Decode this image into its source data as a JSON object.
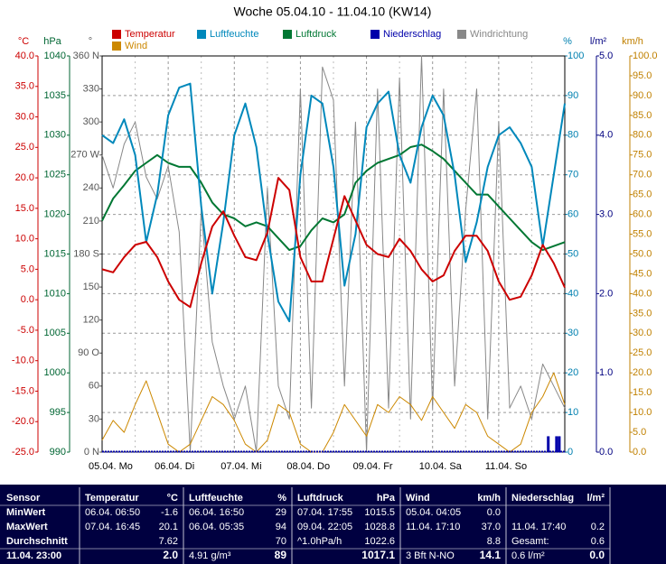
{
  "chart_data": {
    "type": "line",
    "title": "Woche 05.04.10 - 11.04.10 (KW14)",
    "xlim": [
      0,
      168
    ],
    "xticks": [
      {
        "value": 0,
        "label": "05.04. Mo"
      },
      {
        "value": 24,
        "label": "06.04. Di"
      },
      {
        "value": 48,
        "label": "07.04. Mi"
      },
      {
        "value": 72,
        "label": "08.04. Do"
      },
      {
        "value": 96,
        "label": "09.04. Fr"
      },
      {
        "value": 120,
        "label": "10.04. Sa"
      },
      {
        "value": 144,
        "label": "11.04. So"
      }
    ],
    "grid": true,
    "axes": [
      {
        "unit": "°C",
        "color": "#cc0000",
        "lim": [
          -25,
          40
        ],
        "ticks": [
          {
            "value": 40,
            "label": "40.0"
          },
          {
            "value": 35,
            "label": "35.0"
          },
          {
            "value": 30,
            "label": "30.0"
          },
          {
            "value": 25,
            "label": "25.0"
          },
          {
            "value": 20,
            "label": "20.0"
          },
          {
            "value": 15,
            "label": "15.0"
          },
          {
            "value": 10,
            "label": "10.0"
          },
          {
            "value": 5,
            "label": "5.0"
          },
          {
            "value": 0,
            "label": "0.0"
          },
          {
            "value": -5,
            "label": "-5.0"
          },
          {
            "value": -10,
            "label": "-10.0"
          },
          {
            "value": -15,
            "label": "-15.0"
          },
          {
            "value": -20,
            "label": "-20.0"
          },
          {
            "value": -25,
            "label": "-25.0"
          }
        ]
      },
      {
        "unit": "hPa",
        "color": "#006633",
        "lim": [
          990,
          1040
        ],
        "ticks": [
          1040,
          1035,
          1030,
          1025,
          1020,
          1015,
          1010,
          1005,
          1000,
          995,
          990
        ]
      },
      {
        "unit": "°",
        "color": "#555555",
        "lim": [
          0,
          360
        ],
        "ticks": [
          {
            "value": 360,
            "label": "360 N"
          },
          330,
          300,
          {
            "value": 270,
            "label": "270 W"
          },
          240,
          210,
          {
            "value": 180,
            "label": "180 S"
          },
          150,
          120,
          {
            "value": 90,
            "label": "90 O"
          },
          60,
          30,
          {
            "value": 0,
            "label": "0 N"
          }
        ]
      },
      {
        "unit": "%",
        "color": "#0080b0",
        "lim": [
          0,
          100
        ],
        "ticks": [
          100,
          90,
          80,
          70,
          60,
          50,
          40,
          30,
          20,
          10,
          0
        ],
        "grid": true
      },
      {
        "unit": "l/m²",
        "color": "#000080",
        "lim": [
          0,
          5
        ],
        "ticks": [
          {
            "value": 5,
            "label": "5.0"
          },
          {
            "value": 4,
            "label": "4.0"
          },
          {
            "value": 3,
            "label": "3.0"
          },
          {
            "value": 2,
            "label": "2.0"
          },
          {
            "value": 1,
            "label": "1.0"
          },
          {
            "value": 0,
            "label": "0.0"
          }
        ]
      },
      {
        "unit": "km/h",
        "color": "#c08000",
        "lim": [
          0,
          100
        ],
        "ticks": [
          {
            "value": 100,
            "label": "100.0"
          },
          {
            "value": 95,
            "label": "95.0"
          },
          {
            "value": 90,
            "label": "90.0"
          },
          {
            "value": 85,
            "label": "85.0"
          },
          {
            "value": 80,
            "label": "80.0"
          },
          {
            "value": 75,
            "label": "75.0"
          },
          {
            "value": 70,
            "label": "70.0"
          },
          {
            "value": 65,
            "label": "65.0"
          },
          {
            "value": 60,
            "label": "60.0"
          },
          {
            "value": 55,
            "label": "55.0"
          },
          {
            "value": 50,
            "label": "50.0"
          },
          {
            "value": 45,
            "label": "45.0"
          },
          {
            "value": 40,
            "label": "40.0"
          },
          {
            "value": 35,
            "label": "35.0"
          },
          {
            "value": 30,
            "label": "30.0"
          },
          {
            "value": 25,
            "label": "25.0"
          },
          {
            "value": 20,
            "label": "20.0"
          },
          {
            "value": 15,
            "label": "15.0"
          },
          {
            "value": 10,
            "label": "10.0"
          },
          {
            "value": 5,
            "label": "5.0"
          },
          {
            "value": 0,
            "label": "0.0"
          }
        ]
      }
    ],
    "x": [
      0,
      4,
      8,
      12,
      16,
      20,
      24,
      28,
      32,
      36,
      40,
      44,
      48,
      52,
      56,
      60,
      64,
      68,
      72,
      76,
      80,
      84,
      88,
      92,
      96,
      100,
      104,
      108,
      112,
      116,
      120,
      124,
      128,
      132,
      136,
      140,
      144,
      148,
      152,
      156,
      160,
      164,
      168
    ],
    "series": [
      {
        "name": "Temperatur",
        "color": "#cc0000",
        "axis": 0,
        "values": [
          5,
          4.5,
          7,
          9,
          9.5,
          7,
          3,
          0,
          -1.2,
          6,
          12,
          14.5,
          10.5,
          7,
          6.5,
          11,
          20,
          18,
          7,
          3,
          3,
          10,
          17,
          13,
          9,
          7.5,
          7,
          10,
          8,
          5,
          3,
          4,
          8,
          10.5,
          10.5,
          8,
          3,
          0,
          0.5,
          4,
          9,
          6,
          2
        ]
      },
      {
        "name": "Luftfeuchte",
        "color": "#0088bb",
        "axis": 3,
        "values": [
          80,
          78,
          84,
          75,
          53,
          65,
          85,
          92,
          93,
          62,
          40,
          58,
          80,
          88,
          77,
          55,
          38,
          33,
          70,
          90,
          88,
          72,
          42,
          55,
          82,
          88,
          91,
          75,
          68,
          82,
          90,
          85,
          70,
          48,
          58,
          72,
          80,
          82,
          78,
          72,
          52,
          70,
          88
        ]
      },
      {
        "name": "Luftdruck",
        "color": "#007733",
        "axis": 1,
        "values": [
          1019.2,
          1022,
          1023.7,
          1025.5,
          1026.5,
          1027.5,
          1026.5,
          1026,
          1026,
          1024,
          1021.5,
          1020,
          1019.5,
          1018.5,
          1019,
          1018.5,
          1017,
          1015.5,
          1016,
          1018,
          1019.5,
          1019,
          1020,
          1024,
          1025.5,
          1026.5,
          1027,
          1027.5,
          1028.5,
          1028.8,
          1028,
          1027,
          1025.5,
          1024,
          1022.5,
          1022.5,
          1021,
          1019.5,
          1018,
          1016.5,
          1015.5,
          1016,
          1016.5
        ]
      },
      {
        "name": "Niederschlag",
        "color": "#0000aa",
        "axis": 4,
        "style": "bar",
        "x": [
          162,
          165,
          166
        ],
        "values": [
          0.2,
          0.2,
          0.2
        ]
      },
      {
        "name": "Windrichtung",
        "color": "#888888",
        "axis": 2,
        "values": [
          270,
          240,
          280,
          300,
          250,
          230,
          260,
          200,
          0,
          220,
          100,
          60,
          30,
          60,
          0,
          240,
          60,
          30,
          330,
          40,
          350,
          320,
          60,
          300,
          0,
          330,
          40,
          340,
          30,
          360,
          40,
          330,
          60,
          220,
          330,
          30,
          300,
          40,
          60,
          30,
          80,
          60,
          40
        ]
      },
      {
        "name": "Wind",
        "color": "#cc8800",
        "axis": 5,
        "values": [
          3,
          8,
          5,
          12,
          18,
          10,
          2,
          0,
          2,
          8,
          14,
          12,
          8,
          2,
          0,
          3,
          12,
          10,
          2,
          0,
          0,
          5,
          12,
          8,
          4,
          12,
          10,
          14,
          12,
          8,
          14,
          10,
          6,
          12,
          10,
          4,
          2,
          0,
          2,
          10,
          14,
          20,
          12
        ]
      }
    ]
  },
  "table": {
    "corner": "Sensor",
    "columns": [
      {
        "header": "Temperatur",
        "unit": "°C"
      },
      {
        "header": "Luftfeuchte",
        "unit": "%"
      },
      {
        "header": "Luftdruck",
        "unit": "hPa"
      },
      {
        "header": "Wind",
        "unit": "km/h"
      },
      {
        "header": "Niederschlag",
        "unit": "l/m²"
      }
    ],
    "rows": [
      {
        "label": "MinWert",
        "cells": [
          {
            "note": "06.04. 06:50",
            "value": "-1.6"
          },
          {
            "note": "06.04. 16:50",
            "value": "29"
          },
          {
            "note": "07.04. 17:55",
            "value": "1015.5"
          },
          {
            "note": "05.04. 04:05",
            "value": "0.0"
          },
          null
        ]
      },
      {
        "label": "MaxWert",
        "cells": [
          {
            "note": "07.04. 16:45",
            "value": "20.1"
          },
          {
            "note": "06.04. 05:35",
            "value": "94"
          },
          {
            "note": "09.04. 22:05",
            "value": "1028.8"
          },
          {
            "note": "11.04. 17:10",
            "value": "37.0"
          },
          {
            "note": "11.04. 17:40",
            "value": "0.2"
          }
        ]
      },
      {
        "label": "Durchschnitt",
        "cells": [
          {
            "value": "7.62"
          },
          {
            "value": "70"
          },
          {
            "note": "^1.0hPa/h",
            "value": "1022.6"
          },
          {
            "value": "8.8"
          },
          {
            "note": "Gesamt:",
            "value": "0.6"
          }
        ]
      },
      {
        "label": "11.04. 23:00",
        "cells": [
          {
            "value": "2.0"
          },
          {
            "note": "4.91 g/m³",
            "value": "89"
          },
          {
            "value": "1017.1"
          },
          {
            "note": "3 Bft N-NO",
            "value": "14.1"
          },
          {
            "note": "0.6 l/m²",
            "value": "0.0"
          }
        ]
      }
    ]
  }
}
